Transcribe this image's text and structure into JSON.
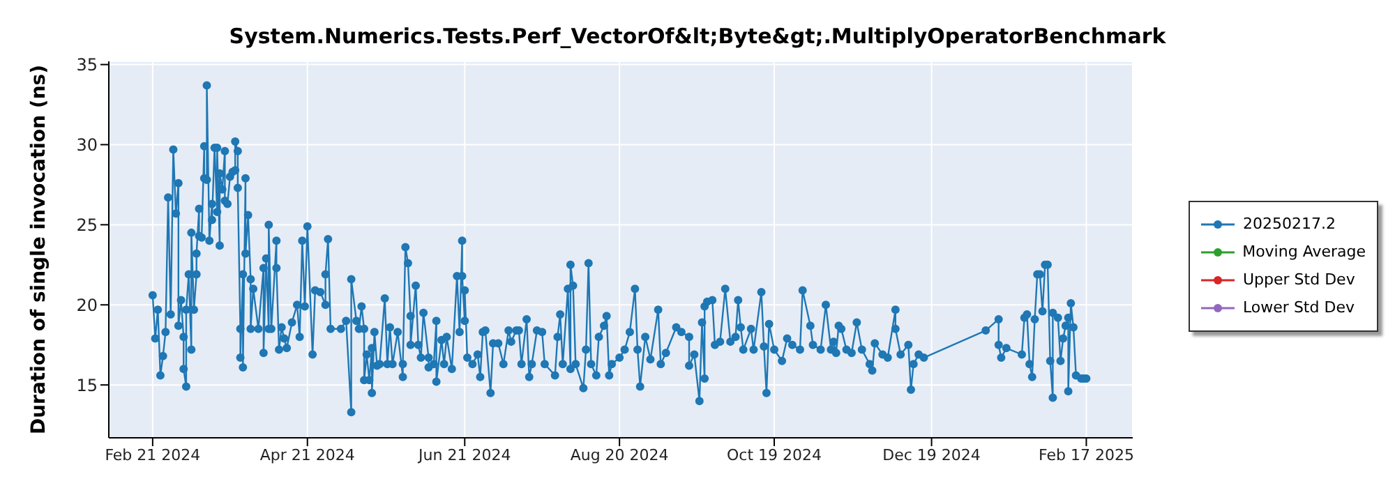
{
  "chart_data": {
    "type": "line",
    "title": "System.Numerics.Tests.Perf_VectorOf&lt;Byte&gt;.MultiplyOperatorBenchmark",
    "ylabel": "Duration of single invocation (ns)",
    "x": [
      "2024-02-21",
      "2024-02-22",
      "2024-02-23",
      "2024-02-24",
      "2024-02-25",
      "2024-02-26",
      "2024-02-27",
      "2024-02-28",
      "2024-02-29",
      "2024-03-01",
      "2024-03-02",
      "2024-03-02",
      "2024-03-03",
      "2024-03-04",
      "2024-03-04",
      "2024-03-05",
      "2024-03-05",
      "2024-03-06",
      "2024-03-07",
      "2024-03-07",
      "2024-03-08",
      "2024-03-09",
      "2024-03-09",
      "2024-03-10",
      "2024-03-10",
      "2024-03-11",
      "2024-03-12",
      "2024-03-12",
      "2024-03-13",
      "2024-03-13",
      "2024-03-14",
      "2024-03-15",
      "2024-03-15",
      "2024-03-16",
      "2024-03-17",
      "2024-03-17",
      "2024-03-18",
      "2024-03-18",
      "2024-03-19",
      "2024-03-20",
      "2024-03-20",
      "2024-03-21",
      "2024-03-22",
      "2024-03-23",
      "2024-03-24",
      "2024-03-24",
      "2024-03-25",
      "2024-03-25",
      "2024-03-26",
      "2024-03-26",
      "2024-03-27",
      "2024-03-27",
      "2024-03-28",
      "2024-03-28",
      "2024-03-29",
      "2024-03-30",
      "2024-03-30",
      "2024-03-31",
      "2024-04-02",
      "2024-04-04",
      "2024-04-04",
      "2024-04-05",
      "2024-04-06",
      "2024-04-06",
      "2024-04-07",
      "2024-04-09",
      "2024-04-09",
      "2024-04-10",
      "2024-04-11",
      "2024-04-12",
      "2024-04-13",
      "2024-04-15",
      "2024-04-17",
      "2024-04-18",
      "2024-04-19",
      "2024-04-20",
      "2024-04-21",
      "2024-04-23",
      "2024-04-24",
      "2024-04-26",
      "2024-04-28",
      "2024-04-28",
      "2024-04-29",
      "2024-04-30",
      "2024-05-04",
      "2024-05-06",
      "2024-05-08",
      "2024-05-08",
      "2024-05-10",
      "2024-05-11",
      "2024-05-12",
      "2024-05-13",
      "2024-05-13",
      "2024-05-14",
      "2024-05-15",
      "2024-05-16",
      "2024-05-16",
      "2024-05-17",
      "2024-05-18",
      "2024-05-19",
      "2024-05-21",
      "2024-05-22",
      "2024-05-23",
      "2024-05-24",
      "2024-05-26",
      "2024-05-28",
      "2024-05-28",
      "2024-05-29",
      "2024-05-30",
      "2024-05-31",
      "2024-05-31",
      "2024-06-02",
      "2024-06-03",
      "2024-06-04",
      "2024-06-05",
      "2024-06-07",
      "2024-06-07",
      "2024-06-09",
      "2024-06-10",
      "2024-06-10",
      "2024-06-12",
      "2024-06-13",
      "2024-06-14",
      "2024-06-16",
      "2024-06-18",
      "2024-06-19",
      "2024-06-20",
      "2024-06-20",
      "2024-06-21",
      "2024-06-21",
      "2024-06-22",
      "2024-06-24",
      "2024-06-26",
      "2024-06-27",
      "2024-06-28",
      "2024-06-29",
      "2024-07-01",
      "2024-07-02",
      "2024-07-04",
      "2024-07-06",
      "2024-07-08",
      "2024-07-09",
      "2024-07-11",
      "2024-07-12",
      "2024-07-13",
      "2024-07-15",
      "2024-07-16",
      "2024-07-17",
      "2024-07-19",
      "2024-07-21",
      "2024-07-22",
      "2024-07-26",
      "2024-07-27",
      "2024-07-28",
      "2024-07-29",
      "2024-07-31",
      "2024-08-01",
      "2024-08-01",
      "2024-08-02",
      "2024-08-03",
      "2024-08-06",
      "2024-08-07",
      "2024-08-08",
      "2024-08-09",
      "2024-08-11",
      "2024-08-12",
      "2024-08-14",
      "2024-08-15",
      "2024-08-16",
      "2024-08-17",
      "2024-08-20",
      "2024-08-22",
      "2024-08-24",
      "2024-08-26",
      "2024-08-27",
      "2024-08-28",
      "2024-08-30",
      "2024-09-01",
      "2024-09-04",
      "2024-09-05",
      "2024-09-07",
      "2024-09-11",
      "2024-09-13",
      "2024-09-16",
      "2024-09-16",
      "2024-09-18",
      "2024-09-20",
      "2024-09-21",
      "2024-09-22",
      "2024-09-22",
      "2024-09-23",
      "2024-09-25",
      "2024-09-26",
      "2024-09-28",
      "2024-09-30",
      "2024-10-02",
      "2024-10-04",
      "2024-10-05",
      "2024-10-06",
      "2024-10-07",
      "2024-10-10",
      "2024-10-11",
      "2024-10-14",
      "2024-10-15",
      "2024-10-16",
      "2024-10-17",
      "2024-10-19",
      "2024-10-22",
      "2024-10-24",
      "2024-10-26",
      "2024-10-29",
      "2024-10-30",
      "2024-11-02",
      "2024-11-03",
      "2024-11-06",
      "2024-11-08",
      "2024-11-10",
      "2024-11-11",
      "2024-11-12",
      "2024-11-13",
      "2024-11-14",
      "2024-11-16",
      "2024-11-18",
      "2024-11-20",
      "2024-11-22",
      "2024-11-25",
      "2024-11-26",
      "2024-11-27",
      "2024-11-30",
      "2024-12-02",
      "2024-12-05",
      "2024-12-05",
      "2024-12-07",
      "2024-12-10",
      "2024-12-11",
      "2024-12-12",
      "2024-12-14",
      "2024-12-16",
      "2025-01-09",
      "2025-01-14",
      "2025-01-14",
      "2025-01-15",
      "2025-01-17",
      "2025-01-23",
      "2025-01-24",
      "2025-01-25",
      "2025-01-26",
      "2025-01-27",
      "2025-01-28",
      "2025-01-29",
      "2025-01-30",
      "2025-01-31",
      "2025-02-01",
      "2025-02-02",
      "2025-02-03",
      "2025-02-04",
      "2025-02-04",
      "2025-02-06",
      "2025-02-07",
      "2025-02-08",
      "2025-02-09",
      "2025-02-10",
      "2025-02-10",
      "2025-02-11",
      "2025-02-12",
      "2025-02-13",
      "2025-02-15",
      "2025-02-16",
      "2025-02-17"
    ],
    "series": [
      {
        "name": "20250217.2",
        "color": "#1f77b4",
        "values": [
          20.6,
          17.9,
          19.7,
          15.6,
          16.8,
          18.3,
          26.7,
          19.4,
          29.7,
          25.7,
          27.6,
          18.7,
          20.3,
          18.0,
          16.0,
          14.9,
          19.7,
          21.9,
          17.2,
          24.5,
          19.7,
          21.9,
          23.2,
          26.0,
          24.3,
          24.2,
          29.9,
          27.9,
          27.8,
          33.7,
          24.0,
          26.3,
          25.3,
          29.8,
          25.8,
          29.8,
          23.7,
          28.2,
          27.2,
          29.6,
          26.5,
          26.3,
          28.0,
          28.3,
          28.4,
          30.2,
          29.6,
          27.3,
          18.5,
          16.7,
          21.9,
          16.1,
          27.9,
          23.2,
          25.6,
          21.6,
          18.5,
          21.0,
          18.5,
          22.3,
          17.0,
          22.9,
          18.5,
          25.0,
          18.5,
          24.0,
          22.3,
          17.2,
          18.6,
          17.9,
          17.3,
          18.9,
          20.0,
          18.0,
          24.0,
          19.9,
          24.9,
          16.9,
          20.9,
          20.8,
          20.0,
          21.9,
          24.1,
          18.5,
          18.5,
          19.0,
          13.3,
          21.6,
          19.0,
          18.5,
          19.9,
          18.5,
          15.3,
          16.9,
          15.3,
          17.3,
          14.5,
          18.3,
          16.2,
          16.3,
          20.4,
          16.3,
          18.6,
          16.3,
          18.3,
          15.5,
          16.3,
          23.6,
          22.6,
          19.3,
          17.5,
          21.2,
          17.5,
          16.7,
          19.5,
          16.7,
          16.1,
          16.3,
          19.0,
          15.2,
          17.8,
          16.3,
          18.0,
          16.0,
          21.8,
          18.3,
          24.0,
          21.8,
          19.0,
          20.9,
          16.7,
          16.3,
          16.9,
          15.5,
          18.3,
          18.4,
          14.5,
          17.6,
          17.6,
          16.3,
          18.4,
          17.7,
          18.4,
          18.4,
          16.3,
          19.1,
          15.5,
          16.3,
          18.4,
          18.3,
          16.3,
          15.6,
          18.0,
          19.4,
          16.3,
          21.0,
          16.0,
          22.5,
          21.2,
          16.3,
          14.8,
          17.2,
          22.6,
          16.3,
          15.6,
          18.0,
          18.7,
          19.3,
          15.6,
          16.3,
          16.7,
          17.2,
          18.3,
          21.0,
          17.2,
          14.9,
          18.0,
          16.6,
          19.7,
          16.3,
          17.0,
          18.6,
          18.3,
          18.0,
          16.2,
          16.9,
          14.0,
          18.9,
          15.4,
          19.9,
          20.2,
          20.3,
          17.5,
          17.7,
          21.0,
          17.7,
          18.0,
          20.3,
          18.6,
          17.2,
          18.5,
          17.2,
          20.8,
          17.4,
          14.5,
          18.8,
          17.2,
          16.5,
          17.9,
          17.5,
          17.2,
          20.9,
          18.7,
          17.5,
          17.2,
          20.0,
          17.2,
          17.7,
          17.0,
          18.7,
          18.5,
          17.2,
          17.0,
          18.9,
          17.2,
          16.3,
          15.9,
          17.6,
          16.9,
          16.7,
          19.7,
          18.5,
          16.9,
          17.5,
          14.7,
          16.3,
          16.9,
          16.7,
          18.4,
          19.1,
          17.5,
          16.7,
          17.3,
          16.9,
          19.2,
          19.4,
          16.3,
          15.5,
          19.1,
          21.9,
          21.9,
          19.6,
          22.5,
          22.5,
          16.5,
          14.2,
          19.5,
          19.2,
          16.5,
          17.9,
          18.7,
          19.2,
          14.6,
          20.1,
          18.6,
          15.6,
          15.4,
          15.4,
          15.4
        ]
      },
      {
        "name": "Moving Average",
        "color": "#2ca02c",
        "values": [
          null,
          null,
          null,
          null,
          null,
          null,
          null,
          null,
          null,
          null,
          null,
          null,
          null,
          null,
          null,
          null,
          null,
          null,
          null,
          null,
          null,
          null,
          null,
          null,
          null,
          null,
          null,
          null,
          null,
          null,
          null,
          null,
          null,
          null,
          null,
          null,
          null,
          null,
          null,
          null,
          null,
          null,
          null,
          null,
          null,
          null,
          null,
          null,
          null,
          null,
          null,
          null,
          null,
          null,
          null,
          null,
          null,
          null,
          null,
          null,
          null,
          null,
          null,
          null,
          null,
          null,
          null,
          null,
          null,
          null,
          null,
          null,
          null,
          null,
          null,
          null,
          null,
          null,
          null,
          null,
          null,
          null,
          null,
          null,
          null,
          null,
          null,
          null,
          null,
          null,
          null,
          null,
          null,
          null,
          null,
          null,
          null,
          null,
          null,
          null,
          null,
          null,
          null,
          null,
          null,
          null,
          null,
          null,
          null,
          null,
          null,
          null,
          null,
          null,
          null,
          null,
          null,
          null,
          null,
          null,
          null,
          null,
          null,
          null,
          null,
          null,
          null,
          null,
          null,
          null,
          null,
          null,
          null,
          null,
          null,
          null,
          null,
          null,
          null,
          null,
          null,
          null,
          null,
          null,
          null,
          null,
          null,
          null,
          null,
          null,
          null,
          null,
          null,
          null,
          null,
          null,
          null,
          null,
          null,
          null,
          null,
          null,
          null,
          null,
          null,
          null,
          null,
          null,
          null,
          null,
          null,
          null,
          null,
          null,
          null,
          null,
          null,
          null,
          null,
          null,
          null,
          null,
          null,
          null,
          null,
          null,
          null,
          null,
          null,
          null,
          null,
          null,
          null,
          null,
          null,
          null,
          null,
          null,
          null,
          null,
          null,
          null,
          null,
          null,
          null,
          null,
          null,
          null,
          null,
          null,
          null,
          null,
          null,
          null,
          null,
          null,
          null,
          null,
          null,
          null,
          null,
          null,
          null,
          null,
          null,
          null,
          null,
          null,
          null,
          null,
          null,
          null,
          null,
          null,
          null,
          null,
          null,
          null,
          null,
          null,
          null,
          null,
          null,
          null,
          null,
          null,
          null,
          null,
          null,
          null,
          null,
          null,
          null,
          null,
          null,
          null,
          null,
          null,
          null,
          null,
          null,
          null,
          null,
          null,
          null,
          null,
          null,
          null,
          null
        ]
      },
      {
        "name": "Upper Std Dev",
        "color": "#d62728",
        "values": [
          null,
          null,
          null,
          null,
          null,
          null,
          null,
          null,
          null,
          null,
          null,
          null,
          null,
          null,
          null,
          null,
          null,
          null,
          null,
          null,
          null,
          null,
          null,
          null,
          null,
          null,
          null,
          null,
          null,
          null,
          null,
          null,
          null,
          null,
          null,
          null,
          null,
          null,
          null,
          null,
          null,
          null,
          null,
          null,
          null,
          null,
          null,
          null,
          null,
          null,
          null,
          null,
          null,
          null,
          null,
          null,
          null,
          null,
          null,
          null,
          null,
          null,
          null,
          null,
          null,
          null,
          null,
          null,
          null,
          null,
          null,
          null,
          null,
          null,
          null,
          null,
          null,
          null,
          null,
          null,
          null,
          null,
          null,
          null,
          null,
          null,
          null,
          null,
          null,
          null,
          null,
          null,
          null,
          null,
          null,
          null,
          null,
          null,
          null,
          null,
          null,
          null,
          null,
          null,
          null,
          null,
          null,
          null,
          null,
          null,
          null,
          null,
          null,
          null,
          null,
          null,
          null,
          null,
          null,
          null,
          null,
          null,
          null,
          null,
          null,
          null,
          null,
          null,
          null,
          null,
          null,
          null,
          null,
          null,
          null,
          null,
          null,
          null,
          null,
          null,
          null,
          null,
          null,
          null,
          null,
          null,
          null,
          null,
          null,
          null,
          null,
          null,
          null,
          null,
          null,
          null,
          null,
          null,
          null,
          null,
          null,
          null,
          null,
          null,
          null,
          null,
          null,
          null,
          null,
          null,
          null,
          null,
          null,
          null,
          null,
          null,
          null,
          null,
          null,
          null,
          null,
          null,
          null,
          null,
          null,
          null,
          null,
          null,
          null,
          null,
          null,
          null,
          null,
          null,
          null,
          null,
          null,
          null,
          null,
          null,
          null,
          null,
          null,
          null,
          null,
          null,
          null,
          null,
          null,
          null,
          null,
          null,
          null,
          null,
          null,
          null,
          null,
          null,
          null,
          null,
          null,
          null,
          null,
          null,
          null,
          null,
          null,
          null,
          null,
          null,
          null,
          null,
          null,
          null,
          null,
          null,
          null,
          null,
          null,
          null,
          null,
          null,
          null,
          null,
          null,
          null,
          null,
          null,
          null,
          null,
          null,
          null,
          null,
          null,
          null,
          null,
          null,
          null,
          null,
          null,
          null,
          null,
          null,
          null,
          null,
          null,
          null,
          null,
          null
        ]
      },
      {
        "name": "Lower Std Dev",
        "color": "#9467bd",
        "values": [
          null,
          null,
          null,
          null,
          null,
          null,
          null,
          null,
          null,
          null,
          null,
          null,
          null,
          null,
          null,
          null,
          null,
          null,
          null,
          null,
          null,
          null,
          null,
          null,
          null,
          null,
          null,
          null,
          null,
          null,
          null,
          null,
          null,
          null,
          null,
          null,
          null,
          null,
          null,
          null,
          null,
          null,
          null,
          null,
          null,
          null,
          null,
          null,
          null,
          null,
          null,
          null,
          null,
          null,
          null,
          null,
          null,
          null,
          null,
          null,
          null,
          null,
          null,
          null,
          null,
          null,
          null,
          null,
          null,
          null,
          null,
          null,
          null,
          null,
          null,
          null,
          null,
          null,
          null,
          null,
          null,
          null,
          null,
          null,
          null,
          null,
          null,
          null,
          null,
          null,
          null,
          null,
          null,
          null,
          null,
          null,
          null,
          null,
          null,
          null,
          null,
          null,
          null,
          null,
          null,
          null,
          null,
          null,
          null,
          null,
          null,
          null,
          null,
          null,
          null,
          null,
          null,
          null,
          null,
          null,
          null,
          null,
          null,
          null,
          null,
          null,
          null,
          null,
          null,
          null,
          null,
          null,
          null,
          null,
          null,
          null,
          null,
          null,
          null,
          null,
          null,
          null,
          null,
          null,
          null,
          null,
          null,
          null,
          null,
          null,
          null,
          null,
          null,
          null,
          null,
          null,
          null,
          null,
          null,
          null,
          null,
          null,
          null,
          null,
          null,
          null,
          null,
          null,
          null,
          null,
          null,
          null,
          null,
          null,
          null,
          null,
          null,
          null,
          null,
          null,
          null,
          null,
          null,
          null,
          null,
          null,
          null,
          null,
          null,
          null,
          null,
          null,
          null,
          null,
          null,
          null,
          null,
          null,
          null,
          null,
          null,
          null,
          null,
          null,
          null,
          null,
          null,
          null,
          null,
          null,
          null,
          null,
          null,
          null,
          null,
          null,
          null,
          null,
          null,
          null,
          null,
          null,
          null,
          null,
          null,
          null,
          null,
          null,
          null,
          null,
          null,
          null,
          null,
          null,
          null,
          null,
          null,
          null,
          null,
          null,
          null,
          null,
          null,
          null,
          null,
          null,
          null,
          null,
          null,
          null,
          null,
          null,
          null,
          null,
          null,
          null,
          null,
          null,
          null,
          null,
          null,
          null,
          null,
          null,
          null,
          null,
          null,
          null,
          null
        ]
      }
    ],
    "xlim": [
      "2024-02-04",
      "2025-03-07"
    ],
    "xticks": [
      {
        "value": "2024-02-21",
        "label": "Feb 21 2024"
      },
      {
        "value": "2024-04-21",
        "label": "Apr 21 2024"
      },
      {
        "value": "2024-06-21",
        "label": "Jun 21 2024"
      },
      {
        "value": "2024-08-20",
        "label": "Aug 20 2024"
      },
      {
        "value": "2024-10-19",
        "label": "Oct 19 2024"
      },
      {
        "value": "2024-12-19",
        "label": "Dec 19 2024"
      },
      {
        "value": "2025-02-17",
        "label": "Feb 17 2025"
      }
    ],
    "ylim": [
      11.7,
      35.2
    ],
    "yticks": [
      15,
      20,
      25,
      30,
      35
    ],
    "grid": true,
    "legend": "right",
    "marker": "circle",
    "line_style": "solid"
  }
}
